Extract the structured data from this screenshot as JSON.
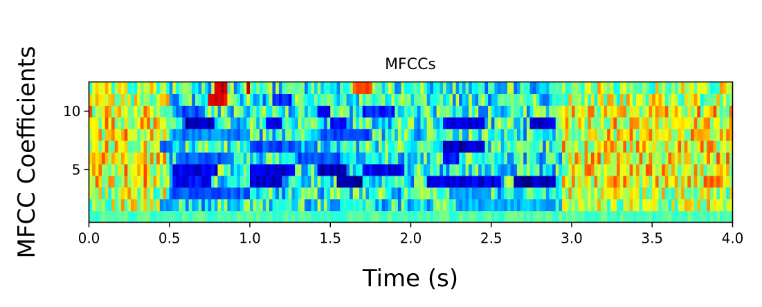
{
  "chart_data": {
    "type": "heatmap",
    "title": "MFCCs",
    "xlabel": "Time (s)",
    "ylabel": "MFCC Coefficients",
    "xlim": [
      0,
      4
    ],
    "ylim": [
      1,
      12
    ],
    "x_ticks": [
      0.0,
      0.5,
      1.0,
      1.5,
      2.0,
      2.5,
      3.0,
      3.5,
      4.0
    ],
    "x_tick_labels": [
      "0.0",
      "0.5",
      "1.0",
      "1.5",
      "2.0",
      "2.5",
      "3.0",
      "3.5",
      "4.0"
    ],
    "y_ticks": [
      5,
      10
    ],
    "y_tick_labels": [
      "5",
      "10"
    ],
    "colormap": "jet",
    "value_range": [
      0,
      1
    ],
    "grid": false,
    "n_coefficients": 12,
    "n_frames": 200,
    "regions": [
      {
        "row": 1,
        "t0": 0.0,
        "t1": 4.0,
        "value": 0.45
      },
      {
        "row": 2,
        "t0": 0.45,
        "t1": 0.55,
        "value": 0.28
      },
      {
        "row": 2,
        "t0": 2.3,
        "t1": 2.9,
        "value": 0.3
      },
      {
        "row": 3,
        "t0": 0.5,
        "t1": 1.0,
        "value": 0.22
      },
      {
        "row": 3,
        "t0": 2.25,
        "t1": 2.5,
        "value": 0.3
      },
      {
        "row": 4,
        "t0": 0.52,
        "t1": 0.75,
        "value": 0.12
      },
      {
        "row": 4,
        "t0": 1.0,
        "t1": 1.2,
        "value": 0.08
      },
      {
        "row": 4,
        "t0": 1.55,
        "t1": 1.7,
        "value": 0.05
      },
      {
        "row": 4,
        "t0": 2.1,
        "t1": 2.55,
        "value": 0.1
      },
      {
        "row": 4,
        "t0": 2.65,
        "t1": 2.9,
        "value": 0.05
      },
      {
        "row": 5,
        "t0": 0.52,
        "t1": 0.8,
        "value": 0.1
      },
      {
        "row": 5,
        "t0": 1.0,
        "t1": 1.28,
        "value": 0.1
      },
      {
        "row": 5,
        "t0": 1.42,
        "t1": 1.6,
        "value": 0.05
      },
      {
        "row": 5,
        "t0": 1.7,
        "t1": 1.95,
        "value": 0.1
      },
      {
        "row": 6,
        "t0": 0.55,
        "t1": 0.9,
        "value": 0.22
      },
      {
        "row": 6,
        "t0": 1.3,
        "t1": 1.55,
        "value": 0.2
      },
      {
        "row": 6,
        "t0": 2.2,
        "t1": 2.3,
        "value": 0.15
      },
      {
        "row": 7,
        "t0": 0.45,
        "t1": 0.52,
        "value": 0.2
      },
      {
        "row": 7,
        "t0": 1.0,
        "t1": 1.3,
        "value": 0.2
      },
      {
        "row": 7,
        "t0": 2.2,
        "t1": 2.35,
        "value": 0.05
      },
      {
        "row": 7,
        "t0": 2.35,
        "t1": 2.45,
        "value": 0.1
      },
      {
        "row": 8,
        "t0": 0.55,
        "t1": 1.0,
        "value": 0.25
      },
      {
        "row": 8,
        "t0": 1.45,
        "t1": 1.75,
        "value": 0.2
      },
      {
        "row": 9,
        "t0": 0.6,
        "t1": 0.78,
        "value": 0.05
      },
      {
        "row": 9,
        "t0": 1.1,
        "t1": 1.2,
        "value": 0.1
      },
      {
        "row": 9,
        "t0": 1.5,
        "t1": 1.6,
        "value": 0.15
      },
      {
        "row": 9,
        "t0": 2.2,
        "t1": 2.45,
        "value": 0.1
      },
      {
        "row": 9,
        "t0": 2.75,
        "t1": 2.9,
        "value": 0.1
      },
      {
        "row": 10,
        "t0": 0.55,
        "t1": 0.7,
        "value": 0.2
      },
      {
        "row": 10,
        "t0": 1.42,
        "t1": 1.5,
        "value": 0.1
      },
      {
        "row": 10,
        "t0": 1.7,
        "t1": 1.9,
        "value": 0.15
      },
      {
        "row": 11,
        "t0": 0.75,
        "t1": 0.85,
        "value": 0.9
      },
      {
        "row": 11,
        "t0": 1.15,
        "t1": 1.25,
        "value": 0.15
      },
      {
        "row": 12,
        "t0": 0.78,
        "t1": 0.85,
        "value": 0.95
      },
      {
        "row": 12,
        "t0": 0.98,
        "t1": 1.0,
        "value": 0.95
      },
      {
        "row": 12,
        "t0": 1.65,
        "t1": 1.75,
        "value": 0.8
      }
    ]
  }
}
